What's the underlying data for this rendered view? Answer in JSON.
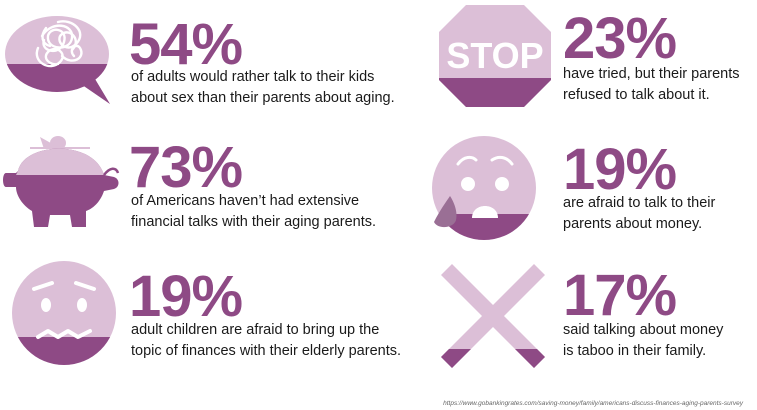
{
  "colors": {
    "purple": "#8e4a85",
    "lavender": "#dcbfd7",
    "text": "#1a1a1a"
  },
  "chart_data": {
    "type": "table",
    "columns": [
      "value",
      "description"
    ],
    "rows": [
      {
        "value": "54%",
        "lines": [
          "of adults would rather talk to their kids",
          "about sex than their parents about aging."
        ],
        "icon": "tangled-speech-bubble-icon"
      },
      {
        "value": "23%",
        "lines": [
          "have tried, but their parents",
          "refused to talk about it."
        ],
        "icon": "stop-sign-icon",
        "icon_text": "STOP"
      },
      {
        "value": "73%",
        "lines": [
          "of Americans haven’t had extensive",
          "financial talks with their aging parents."
        ],
        "icon": "piggy-bank-icon"
      },
      {
        "value": "19%",
        "lines": [
          "are afraid to talk to their",
          "parents about money."
        ],
        "icon": "worried-face-icon"
      },
      {
        "value": "19%",
        "lines": [
          "adult children are afraid to bring up the",
          "topic of finances with their elderly parents."
        ],
        "icon": "anxious-face-icon"
      },
      {
        "value": "17%",
        "lines": [
          "said talking about money",
          "is taboo in their family."
        ],
        "icon": "x-mark-icon"
      }
    ]
  },
  "source": "https://www.gobankingrates.com/saving-money/family/americans-discuss-finances-aging-parents-survey"
}
